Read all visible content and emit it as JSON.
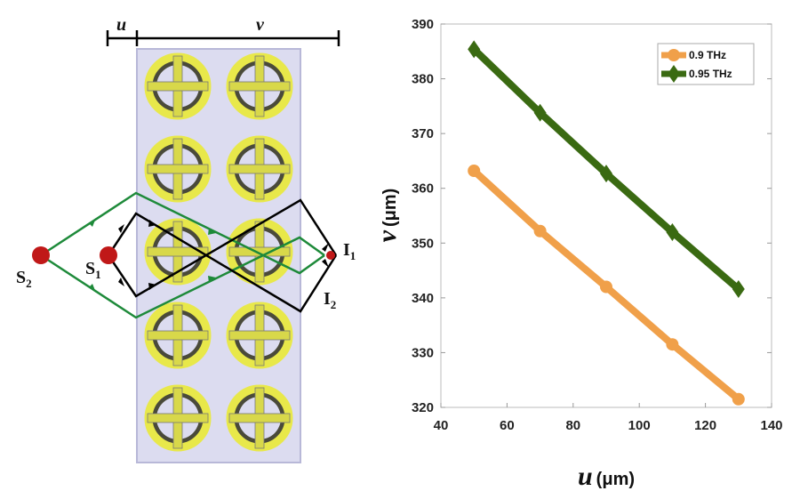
{
  "diagram": {
    "dim_u": "u",
    "dim_v": "v",
    "labels": {
      "S2": "S",
      "S2_sub": "2",
      "S1": "S",
      "S1_sub": "1",
      "I1": "I",
      "I1_sub": "1",
      "I2": "I",
      "I2_sub": "2"
    },
    "colors": {
      "panel": "#dcdcf0",
      "ring": "#e8e84a",
      "source": "#c01818",
      "green_path": "#1e8a3a",
      "black_path": "#000000"
    }
  },
  "chart_data": {
    "type": "line",
    "xlabel_var": "u",
    "xlabel_unit": "(μm)",
    "ylabel_var": "v",
    "ylabel_unit": "(μm)",
    "xlim": [
      40,
      140
    ],
    "ylim": [
      320,
      390
    ],
    "xticks": [
      "40",
      "60",
      "80",
      "100",
      "120",
      "140"
    ],
    "yticks": [
      "320",
      "330",
      "340",
      "350",
      "360",
      "370",
      "380",
      "390"
    ],
    "x": [
      50,
      70,
      90,
      110,
      130
    ],
    "legend_position": "top-right",
    "series": [
      {
        "name": "0.9 THz",
        "color": "#f0a04a",
        "marker": "circle",
        "values": [
          363.2,
          352.2,
          342.0,
          331.5,
          321.5
        ]
      },
      {
        "name": "0.95 THz",
        "color": "#3a6a12",
        "marker": "diamond",
        "values": [
          385.4,
          373.8,
          362.7,
          352.0,
          341.6
        ]
      }
    ]
  }
}
